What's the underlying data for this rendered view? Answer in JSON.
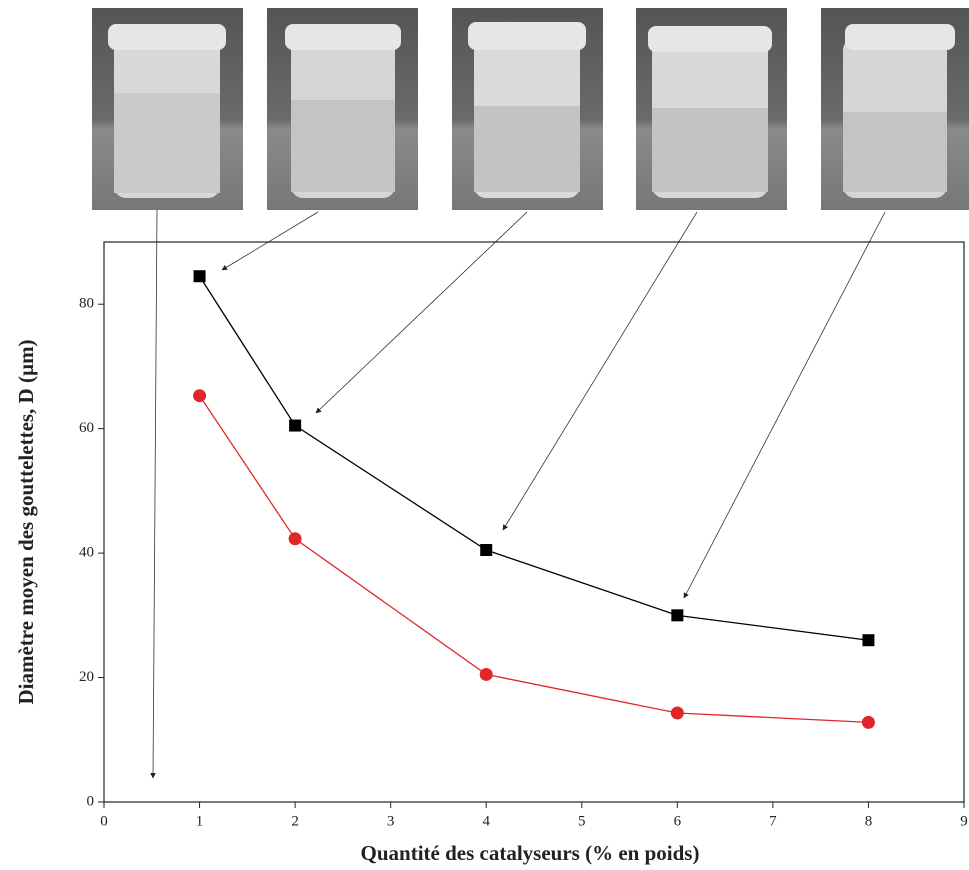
{
  "chart_data": {
    "type": "line",
    "x_label": "Quantité des catalyseurs (% en poids)",
    "y_label": "Diamètre moyen des gouttelettes, D (µm)",
    "x": [
      1,
      2,
      4,
      6,
      8
    ],
    "series": [
      {
        "color": "#000000",
        "marker": "square",
        "values": [
          84.5,
          60.5,
          40.5,
          30,
          26
        ]
      },
      {
        "color": "#e0262b",
        "marker": "circle",
        "values": [
          65.3,
          42.3,
          20.5,
          14.3,
          12.8
        ]
      }
    ],
    "xlim": [
      0,
      9
    ],
    "xticks": [
      0,
      1,
      2,
      3,
      4,
      5,
      6,
      7,
      8,
      9
    ],
    "ylim": [
      0,
      90
    ],
    "yticks": [
      0,
      20,
      40,
      60,
      80
    ]
  }
}
